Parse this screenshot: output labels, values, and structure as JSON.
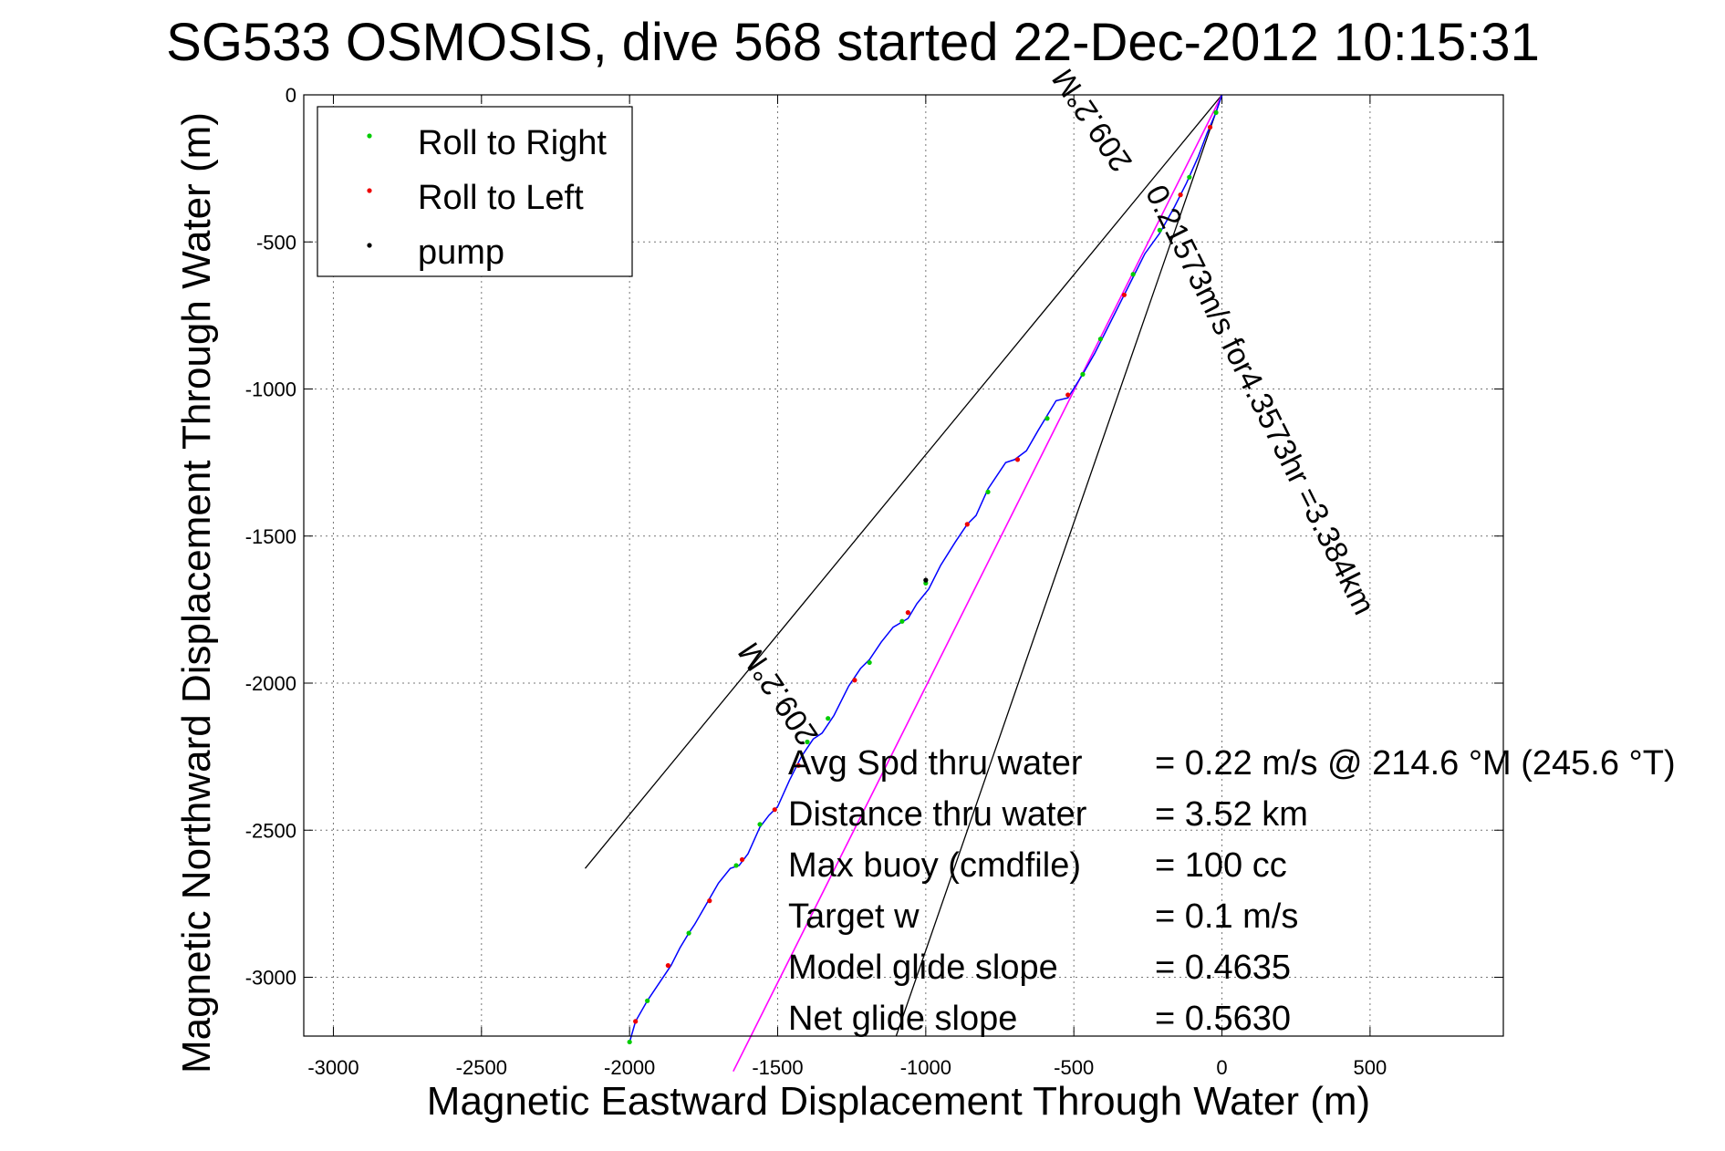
{
  "chart_data": {
    "type": "line",
    "title": "SG533 OSMOSIS, dive 568 started 22-Dec-2012 10:15:31",
    "xlabel": "Magnetic Eastward Displacement Through Water (m)",
    "ylabel": "Magnetic Northward Displacement Through Water (m)",
    "xlim": [
      -3100,
      950
    ],
    "ylim": [
      -3200,
      0
    ],
    "xticks": [
      -3000,
      -2500,
      -2000,
      -1500,
      -1000,
      -500,
      0,
      500
    ],
    "xtick_labels": [
      "-3000",
      "-2500",
      "-2000",
      "-1500",
      "-1000",
      "-500",
      "0",
      "500"
    ],
    "yticks": [
      0,
      -500,
      -1000,
      -1500,
      -2000,
      -2500,
      -3000
    ],
    "ytick_labels": [
      "0",
      "-500",
      "-1000",
      "-1500",
      "-2000",
      "-2500",
      "-3000"
    ],
    "grid": true,
    "legend": {
      "position": "top-left",
      "entries": [
        {
          "label": "Roll to Right",
          "color": "#00cc00"
        },
        {
          "label": "Roll to Left",
          "color": "#ee0000"
        },
        {
          "label": "pump",
          "color": "#000000"
        }
      ]
    },
    "track": {
      "name": "glider track",
      "color": "#0000ff",
      "x": [
        0,
        -20,
        -50,
        -80,
        -120,
        -160,
        -210,
        -260,
        -300,
        -340,
        -380,
        -430,
        -470,
        -520,
        -560,
        -620,
        -660,
        -700,
        -730,
        -790,
        -830,
        -860,
        -900,
        -950,
        -990,
        -1030,
        -1060,
        -1110,
        -1150,
        -1190,
        -1220,
        -1260,
        -1310,
        -1350,
        -1380,
        -1420,
        -1460,
        -1500,
        -1530,
        -1560,
        -1600,
        -1630,
        -1660,
        -1700,
        -1740,
        -1780,
        -1800,
        -1830,
        -1860,
        -1900,
        -1940,
        -1980,
        -2000
      ],
      "y": [
        0,
        -60,
        -130,
        -210,
        -300,
        -380,
        -470,
        -540,
        -620,
        -700,
        -780,
        -880,
        -950,
        -1030,
        -1040,
        -1140,
        -1210,
        -1240,
        -1250,
        -1340,
        -1430,
        -1460,
        -1520,
        -1600,
        -1680,
        -1730,
        -1780,
        -1810,
        -1860,
        -1920,
        -1950,
        -2010,
        -2110,
        -2170,
        -2190,
        -2250,
        -2330,
        -2420,
        -2450,
        -2490,
        -2580,
        -2620,
        -2630,
        -2680,
        -2750,
        -2820,
        -2850,
        -2900,
        -2960,
        -3020,
        -3080,
        -3150,
        -3220
      ]
    },
    "roll_right_points": {
      "x": [
        -20,
        -110,
        -210,
        -300,
        -410,
        -470,
        -590,
        -790,
        -1000,
        -1080,
        -1190,
        -1330,
        -1400,
        -1560,
        -1640,
        -1800,
        -1940,
        -2000
      ],
      "y": [
        -60,
        -280,
        -460,
        -610,
        -830,
        -950,
        -1100,
        -1350,
        -1660,
        -1790,
        -1930,
        -2120,
        -2200,
        -2480,
        -2620,
        -2850,
        -3080,
        -3220
      ]
    },
    "roll_left_points": {
      "x": [
        -40,
        -140,
        -330,
        -520,
        -690,
        -860,
        -1060,
        -1240,
        -1430,
        -1510,
        -1620,
        -1730,
        -1870,
        -1980
      ],
      "y": [
        -110,
        -340,
        -680,
        -1020,
        -1240,
        -1460,
        -1760,
        -1990,
        -2280,
        -2430,
        -2600,
        -2740,
        -2960,
        -3150
      ]
    },
    "pump_points": {
      "x": [
        -1000
      ],
      "y": [
        -1650
      ]
    },
    "current_line": {
      "color": "#ff00ff",
      "x": [
        0,
        -1650
      ],
      "y": [
        0,
        -3320
      ]
    },
    "cone_lines": {
      "color": "#000000",
      "x": [
        0,
        -2150,
        0,
        -1100
      ],
      "y": [
        0,
        -2630,
        0,
        -3200
      ]
    },
    "annotations": {
      "current_label": "0.21573m/s for4.3573hr =3.384km",
      "upper_heading": "209.2°M",
      "lower_heading": "209.2°M"
    },
    "stats": [
      {
        "label": "Avg Spd thru water",
        "value": "=  0.22 m/s @ 214.6 °M (245.6 °T)"
      },
      {
        "label": "Distance thru water",
        "value": "=  3.52 km"
      },
      {
        "label": "Max buoy (cmdfile)",
        "value": "= 100 cc"
      },
      {
        "label": "Target w",
        "value": "= 0.1 m/s"
      },
      {
        "label": "Model glide slope",
        "value": "= 0.4635"
      },
      {
        "label": "Net glide slope",
        "value": "= 0.5630"
      }
    ]
  }
}
